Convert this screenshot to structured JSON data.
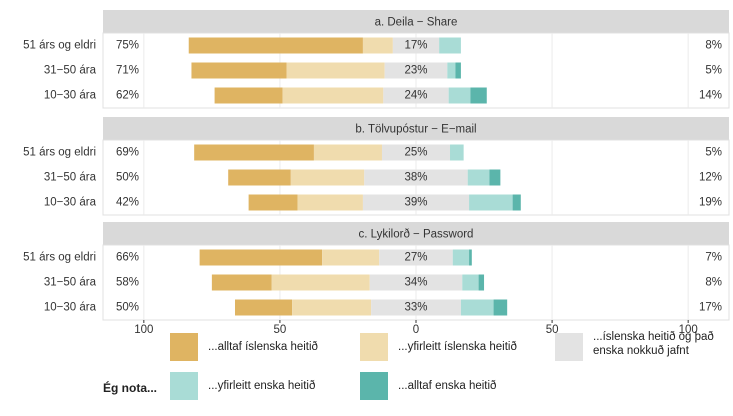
{
  "chart_data": {
    "type": "diverging_bar",
    "legend_title": "Ég nota...",
    "series": [
      {
        "name": "...alltaf íslenska heitið",
        "color": "#dfb462",
        "side": "left"
      },
      {
        "name": "...yfirleitt íslenska heitið",
        "color": "#f0dcae",
        "side": "left"
      },
      {
        "name": "...íslenska heitið og það enska nokkuð jafnt",
        "color": "#e3e3e3",
        "side": "center"
      },
      {
        "name": "...yfirleitt enska heitið",
        "color": "#a9dcd6",
        "side": "right"
      },
      {
        "name": "...alltaf enska heitið",
        "color": "#5bb5ab",
        "side": "right"
      }
    ],
    "xlim": [
      -115,
      115
    ],
    "xticks": [
      {
        "value": -100,
        "label": "100"
      },
      {
        "value": -50,
        "label": "50"
      },
      0,
      50,
      100
    ],
    "grid": true,
    "panels": [
      {
        "title": "a. Deila − Share",
        "categories": [
          "51 árs og eldri",
          "31−50 ára",
          "10−30 ára"
        ],
        "values": [
          [
            64,
            35,
            25
          ],
          [
            11,
            36,
            37
          ],
          [
            17,
            23,
            24
          ],
          [
            8,
            3,
            8
          ],
          [
            0,
            2,
            6
          ]
        ],
        "left_totals": {
          "values": [
            75,
            71,
            62
          ],
          "value_labels": [
            "75%",
            "71%",
            "62%"
          ]
        },
        "center_totals": {
          "values": [
            17,
            23,
            24
          ],
          "value_labels": [
            "17%",
            "23%",
            "24%"
          ]
        },
        "right_totals": {
          "values": [
            8,
            5,
            14
          ],
          "value_labels": [
            "8%",
            "5%",
            "14%"
          ]
        }
      },
      {
        "title": "b. Tölvupóstur − E−mail",
        "categories": [
          "51 árs og eldri",
          "31−50 ára",
          "10−30 ára"
        ],
        "values": [
          [
            44,
            23,
            18
          ],
          [
            25,
            27,
            24
          ],
          [
            25,
            38,
            39
          ],
          [
            5,
            8,
            16
          ],
          [
            0,
            4,
            3
          ]
        ],
        "left_totals": {
          "values": [
            69,
            50,
            42
          ],
          "value_labels": [
            "69%",
            "50%",
            "42%"
          ]
        },
        "center_totals": {
          "values": [
            25,
            38,
            39
          ],
          "value_labels": [
            "25%",
            "38%",
            "39%"
          ]
        },
        "right_totals": {
          "values": [
            5,
            12,
            19
          ],
          "value_labels": [
            "5%",
            "12%",
            "19%"
          ]
        }
      },
      {
        "title": "c. Lykilorð − Password",
        "categories": [
          "51 árs og eldri",
          "31−50 ára",
          "10−30 ára"
        ],
        "values": [
          [
            45,
            22,
            21
          ],
          [
            21,
            36,
            29
          ],
          [
            27,
            34,
            33
          ],
          [
            6,
            6,
            12
          ],
          [
            1,
            2,
            5
          ]
        ],
        "left_totals": {
          "values": [
            66,
            58,
            50
          ],
          "value_labels": [
            "66%",
            "58%",
            "50%"
          ]
        },
        "center_totals": {
          "values": [
            27,
            34,
            33
          ],
          "value_labels": [
            "27%",
            "34%",
            "33%"
          ]
        },
        "right_totals": {
          "values": [
            7,
            8,
            17
          ],
          "value_labels": [
            "7%",
            "8%",
            "17%"
          ]
        }
      }
    ]
  }
}
